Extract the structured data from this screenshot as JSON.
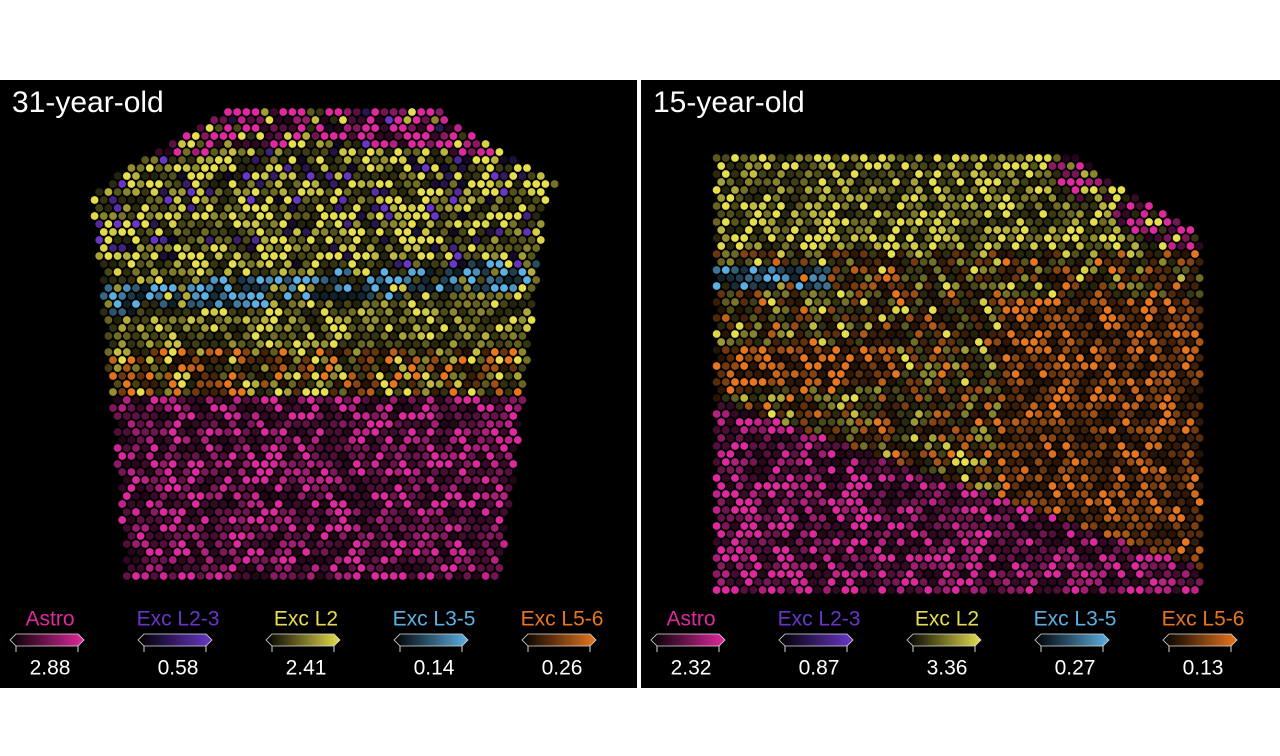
{
  "panels": [
    {
      "title": "31-year-old",
      "legend": [
        {
          "name": "Astro",
          "color": "#e0289f",
          "max": 2.88
        },
        {
          "name": "Exc L2-3",
          "color": "#6a36c8",
          "max": 0.58
        },
        {
          "name": "Exc L2",
          "color": "#e6de4c",
          "max": 2.41
        },
        {
          "name": "Exc L3-5",
          "color": "#5cb0e2",
          "max": 0.14
        },
        {
          "name": "Exc L5-6",
          "color": "#e8761e",
          "max": 0.26
        }
      ]
    },
    {
      "title": "15-year-old",
      "legend": [
        {
          "name": "Astro",
          "color": "#e0289f",
          "max": 2.32
        },
        {
          "name": "Exc L2-3",
          "color": "#6a36c8",
          "max": 0.87
        },
        {
          "name": "Exc L2",
          "color": "#e6de4c",
          "max": 3.36
        },
        {
          "name": "Exc L3-5",
          "color": "#5cb0e2",
          "max": 0.27
        },
        {
          "name": "Exc L5-6",
          "color": "#e8761e",
          "max": 0.13
        }
      ]
    }
  ]
}
